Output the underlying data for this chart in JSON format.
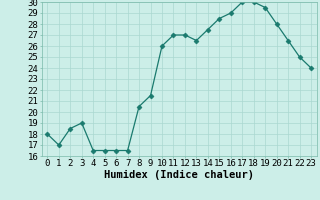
{
  "x": [
    0,
    1,
    2,
    3,
    4,
    5,
    6,
    7,
    8,
    9,
    10,
    11,
    12,
    13,
    14,
    15,
    16,
    17,
    18,
    19,
    20,
    21,
    22,
    23
  ],
  "y": [
    18.0,
    17.0,
    18.5,
    19.0,
    16.5,
    16.5,
    16.5,
    16.5,
    20.5,
    21.5,
    26.0,
    27.0,
    27.0,
    26.5,
    27.5,
    28.5,
    29.0,
    30.0,
    30.0,
    29.5,
    28.0,
    26.5,
    25.0,
    24.0
  ],
  "line_color": "#1a7a6e",
  "marker": "D",
  "marker_size": 2.5,
  "bg_color": "#cceee8",
  "grid_color": "#aad8d0",
  "xlabel": "Humidex (Indice chaleur)",
  "ylim": [
    16,
    30
  ],
  "xlim": [
    -0.5,
    23.5
  ],
  "yticks": [
    16,
    17,
    18,
    19,
    20,
    21,
    22,
    23,
    24,
    25,
    26,
    27,
    28,
    29,
    30
  ],
  "xticks": [
    0,
    1,
    2,
    3,
    4,
    5,
    6,
    7,
    8,
    9,
    10,
    11,
    12,
    13,
    14,
    15,
    16,
    17,
    18,
    19,
    20,
    21,
    22,
    23
  ],
  "xlabel_fontsize": 7.5,
  "tick_fontsize": 6.5
}
